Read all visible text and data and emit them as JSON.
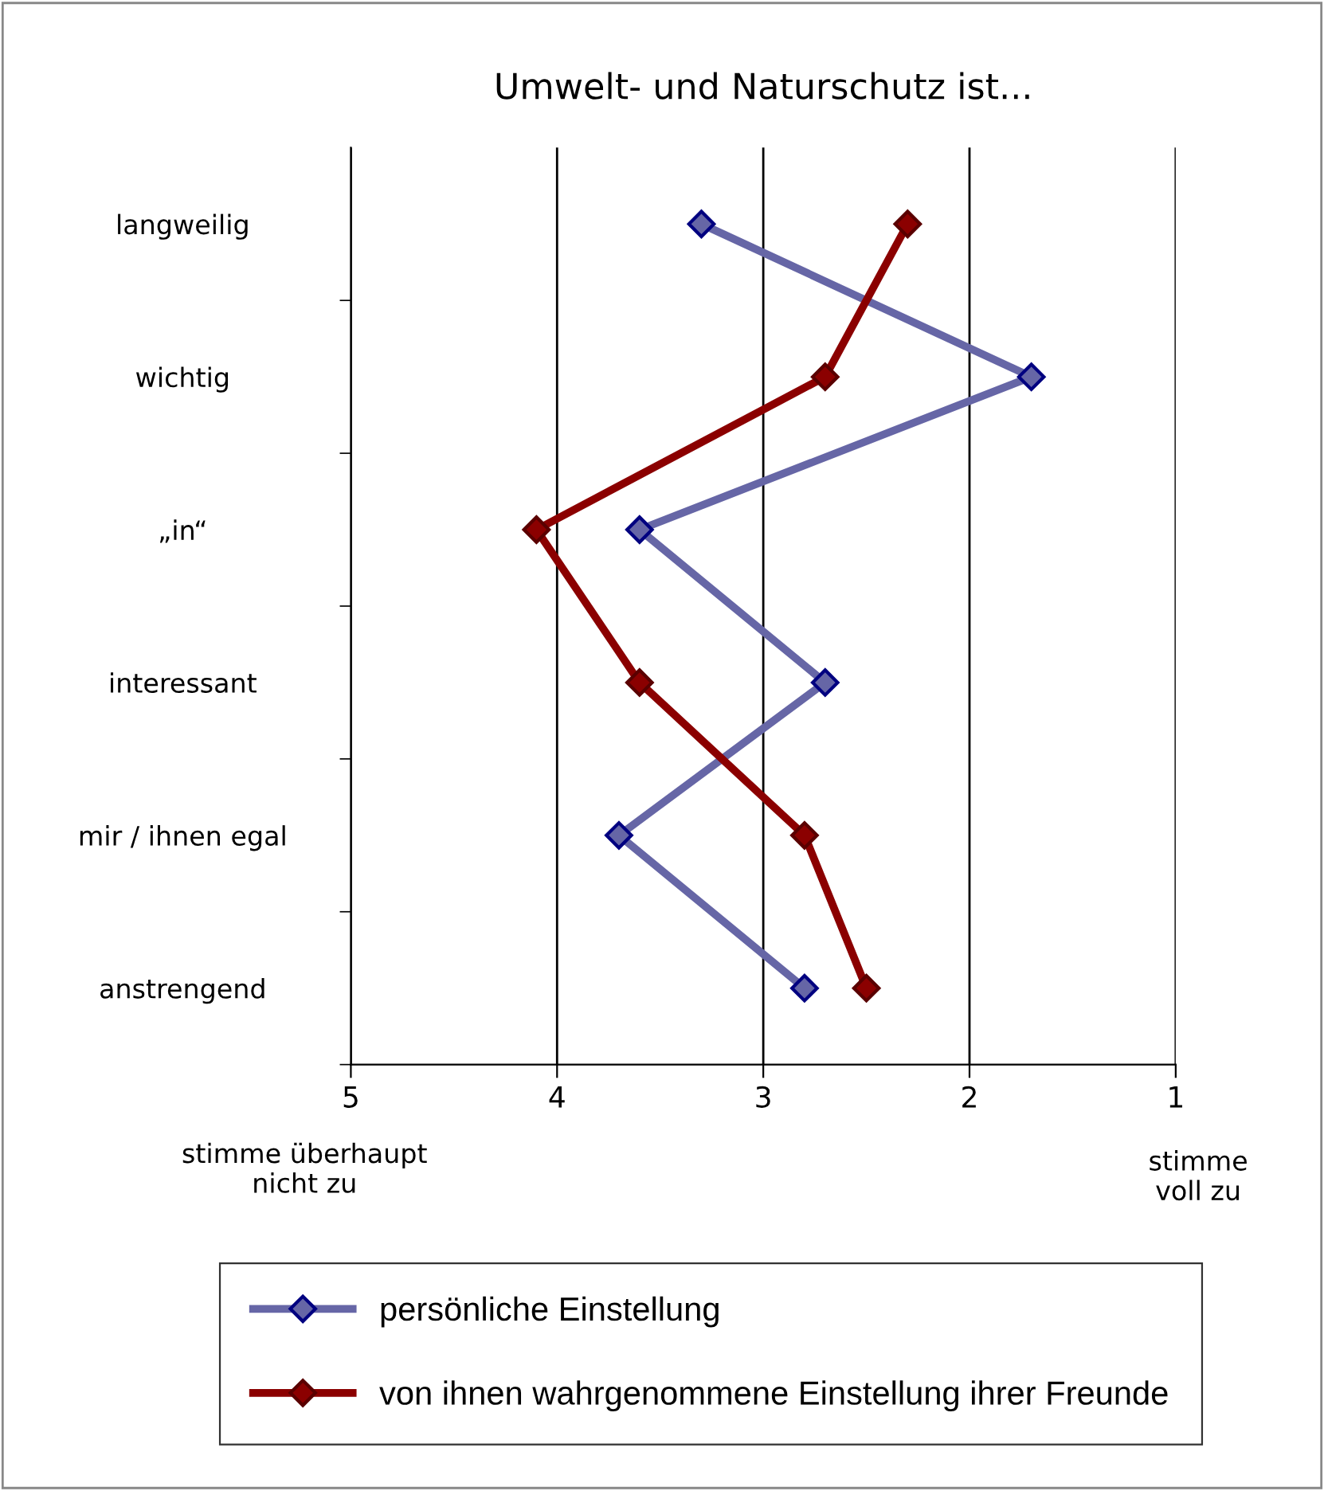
{
  "chart_data": {
    "type": "line",
    "orientation": "horizontal",
    "title": "Umwelt- und Naturschutz ist...",
    "categories": [
      "langweilig",
      "wichtig",
      "„in“",
      "interessant",
      "mir / ihnen egal",
      "anstrengend"
    ],
    "series": [
      {
        "name": "persönliche Einstellung",
        "color": "#6666a6",
        "values": [
          3.3,
          1.7,
          3.6,
          2.7,
          3.7,
          2.8
        ]
      },
      {
        "name": "von ihnen wahrgenommene Einstellung ihrer Freunde",
        "color": "#8b0000",
        "values": [
          2.3,
          2.7,
          4.1,
          3.6,
          2.8,
          2.5
        ]
      }
    ],
    "xlim": [
      5,
      1
    ],
    "xticks": [
      5,
      4,
      3,
      2,
      1
    ],
    "grid": "x",
    "legend": "bottom",
    "marker": "diamond",
    "line_style": "solid",
    "annotations": [
      "stimme überhaupt\nnicht zu",
      "stimme\nvoll zu"
    ]
  }
}
